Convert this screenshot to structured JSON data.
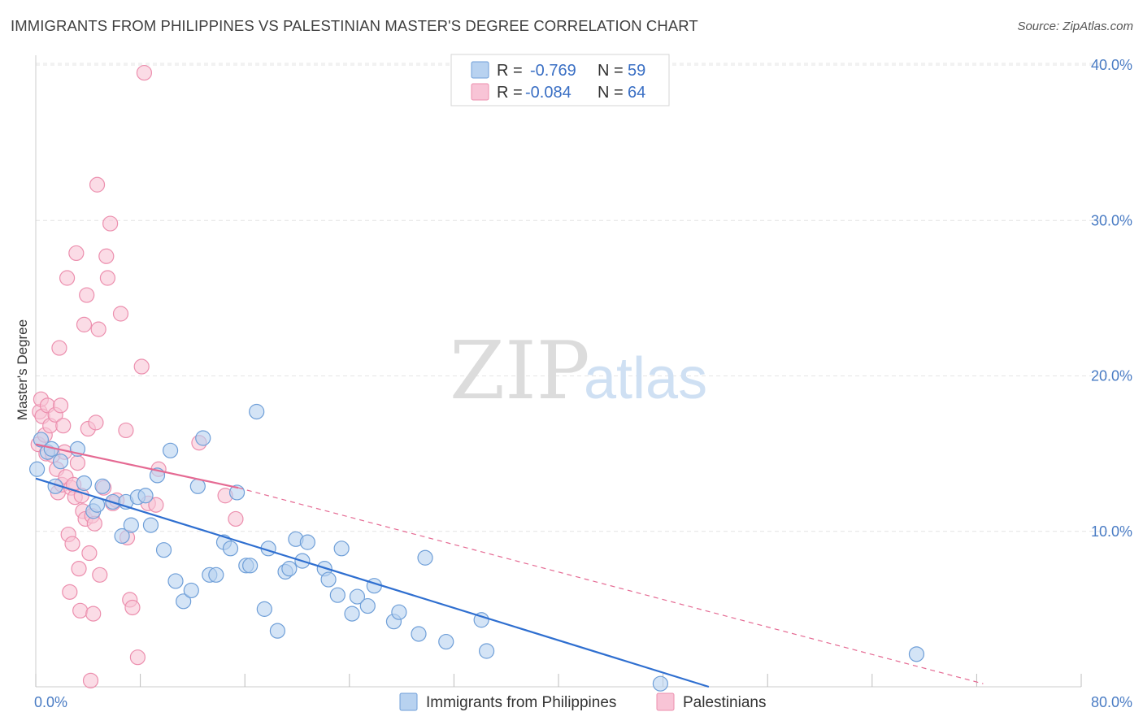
{
  "title": "IMMIGRANTS FROM PHILIPPINES VS PALESTINIAN MASTER'S DEGREE CORRELATION CHART",
  "source": "Source: ZipAtlas.com",
  "watermark": {
    "zip": "ZIP",
    "atlas": "atlas"
  },
  "colors": {
    "blue_fill": "#b8d2f0",
    "blue_stroke": "#6f9fd8",
    "blue_line": "#2f6fd0",
    "pink_fill": "#f8c4d6",
    "pink_stroke": "#ec8fae",
    "pink_line": "#e56a93",
    "grid": "#e4e4e4"
  },
  "legend": {
    "rows": [
      {
        "r_label": "R =",
        "r_value": "-0.769",
        "n_label": "N =",
        "n_value": "59"
      },
      {
        "r_label": "R =",
        "r_value": "-0.084",
        "n_label": "N =",
        "n_value": "64"
      }
    ]
  },
  "chart_data": {
    "type": "scatter",
    "title": "IMMIGRANTS FROM PHILIPPINES VS PALESTINIAN MASTER'S DEGREE CORRELATION CHART",
    "xlabel": "",
    "ylabel": "Master's Degree",
    "xlim": [
      0,
      80
    ],
    "ylim": [
      0,
      40
    ],
    "y_ticks": [
      10,
      20,
      30,
      40
    ],
    "y_tick_labels": [
      "10.0%",
      "20.0%",
      "30.0%",
      "40.0%"
    ],
    "x_tick_labels": [
      "0.0%",
      "80.0%"
    ],
    "x_ticks_minor": [
      0,
      8,
      16,
      24,
      32,
      40,
      48,
      56,
      64,
      72,
      80
    ],
    "grid": true,
    "legend_position": "top-center",
    "series": [
      {
        "name": "Immigrants from Philippines",
        "color": "#6f9fd8",
        "trend": {
          "x": [
            0,
            51.5
          ],
          "y": [
            13.4,
            0
          ]
        },
        "points": [
          [
            0.1,
            14.0
          ],
          [
            0.4,
            15.9
          ],
          [
            0.9,
            15.1
          ],
          [
            1.2,
            15.3
          ],
          [
            1.5,
            12.9
          ],
          [
            1.9,
            14.5
          ],
          [
            3.2,
            15.3
          ],
          [
            3.7,
            13.1
          ],
          [
            4.4,
            11.3
          ],
          [
            4.7,
            11.7
          ],
          [
            5.1,
            12.9
          ],
          [
            5.9,
            11.9
          ],
          [
            6.6,
            9.7
          ],
          [
            6.9,
            11.9
          ],
          [
            7.3,
            10.4
          ],
          [
            7.8,
            12.2
          ],
          [
            8.4,
            12.3
          ],
          [
            8.8,
            10.4
          ],
          [
            9.3,
            13.6
          ],
          [
            9.8,
            8.8
          ],
          [
            10.3,
            15.2
          ],
          [
            10.7,
            6.8
          ],
          [
            11.3,
            5.5
          ],
          [
            11.9,
            6.2
          ],
          [
            12.4,
            12.9
          ],
          [
            12.8,
            16.0
          ],
          [
            13.3,
            7.2
          ],
          [
            13.8,
            7.2
          ],
          [
            14.4,
            9.3
          ],
          [
            14.9,
            8.9
          ],
          [
            15.4,
            12.5
          ],
          [
            16.1,
            7.8
          ],
          [
            16.4,
            7.8
          ],
          [
            16.9,
            17.7
          ],
          [
            17.5,
            5.0
          ],
          [
            17.8,
            8.9
          ],
          [
            18.5,
            3.6
          ],
          [
            19.1,
            7.4
          ],
          [
            19.4,
            7.6
          ],
          [
            19.9,
            9.5
          ],
          [
            20.4,
            8.1
          ],
          [
            20.8,
            9.3
          ],
          [
            22.1,
            7.6
          ],
          [
            22.4,
            6.9
          ],
          [
            23.1,
            5.9
          ],
          [
            23.4,
            8.9
          ],
          [
            24.2,
            4.7
          ],
          [
            24.6,
            5.8
          ],
          [
            25.4,
            5.2
          ],
          [
            25.9,
            6.5
          ],
          [
            27.4,
            4.2
          ],
          [
            27.8,
            4.8
          ],
          [
            29.3,
            3.4
          ],
          [
            29.8,
            8.3
          ],
          [
            31.4,
            2.9
          ],
          [
            34.1,
            4.3
          ],
          [
            34.5,
            2.3
          ],
          [
            47.8,
            0.2
          ],
          [
            67.4,
            2.1
          ]
        ]
      },
      {
        "name": "Palestinians",
        "color": "#ec8fae",
        "trend": {
          "x": [
            0,
            15.5
          ],
          "y": [
            15.6,
            12.8
          ]
        },
        "trend_dashed": {
          "x": [
            15.5,
            72.5
          ],
          "y": [
            12.8,
            0.2
          ]
        },
        "points": [
          [
            0.2,
            15.6
          ],
          [
            0.3,
            17.7
          ],
          [
            0.4,
            18.5
          ],
          [
            0.5,
            17.4
          ],
          [
            0.7,
            16.2
          ],
          [
            0.8,
            15.0
          ],
          [
            0.9,
            18.1
          ],
          [
            1.1,
            16.8
          ],
          [
            1.3,
            14.9
          ],
          [
            1.5,
            17.5
          ],
          [
            1.6,
            14.0
          ],
          [
            1.7,
            12.5
          ],
          [
            1.8,
            21.8
          ],
          [
            1.9,
            18.1
          ],
          [
            2.0,
            13.0
          ],
          [
            2.1,
            16.8
          ],
          [
            2.2,
            15.1
          ],
          [
            2.3,
            13.5
          ],
          [
            2.4,
            26.3
          ],
          [
            2.5,
            9.8
          ],
          [
            2.6,
            6.1
          ],
          [
            2.7,
            12.8
          ],
          [
            2.8,
            9.2
          ],
          [
            2.9,
            13.0
          ],
          [
            3.0,
            12.2
          ],
          [
            3.1,
            27.9
          ],
          [
            3.2,
            14.4
          ],
          [
            3.3,
            7.6
          ],
          [
            3.4,
            4.9
          ],
          [
            3.5,
            12.3
          ],
          [
            3.6,
            11.3
          ],
          [
            3.7,
            23.3
          ],
          [
            3.8,
            10.8
          ],
          [
            3.9,
            25.2
          ],
          [
            4.0,
            16.6
          ],
          [
            4.1,
            8.6
          ],
          [
            4.2,
            0.4
          ],
          [
            4.3,
            11.0
          ],
          [
            4.4,
            4.7
          ],
          [
            4.5,
            10.5
          ],
          [
            4.6,
            17.0
          ],
          [
            4.7,
            32.3
          ],
          [
            4.8,
            23.0
          ],
          [
            4.9,
            7.2
          ],
          [
            5.2,
            12.8
          ],
          [
            5.4,
            27.7
          ],
          [
            5.5,
            26.3
          ],
          [
            5.7,
            29.8
          ],
          [
            5.9,
            11.8
          ],
          [
            6.2,
            12.0
          ],
          [
            6.5,
            24.0
          ],
          [
            6.9,
            16.5
          ],
          [
            7.0,
            9.6
          ],
          [
            7.2,
            5.6
          ],
          [
            7.4,
            5.1
          ],
          [
            7.8,
            1.9
          ],
          [
            8.1,
            20.6
          ],
          [
            8.3,
            39.5
          ],
          [
            8.6,
            11.8
          ],
          [
            9.2,
            11.7
          ],
          [
            9.4,
            14.0
          ],
          [
            12.5,
            15.7
          ],
          [
            14.5,
            12.3
          ],
          [
            15.3,
            10.8
          ]
        ]
      }
    ]
  }
}
